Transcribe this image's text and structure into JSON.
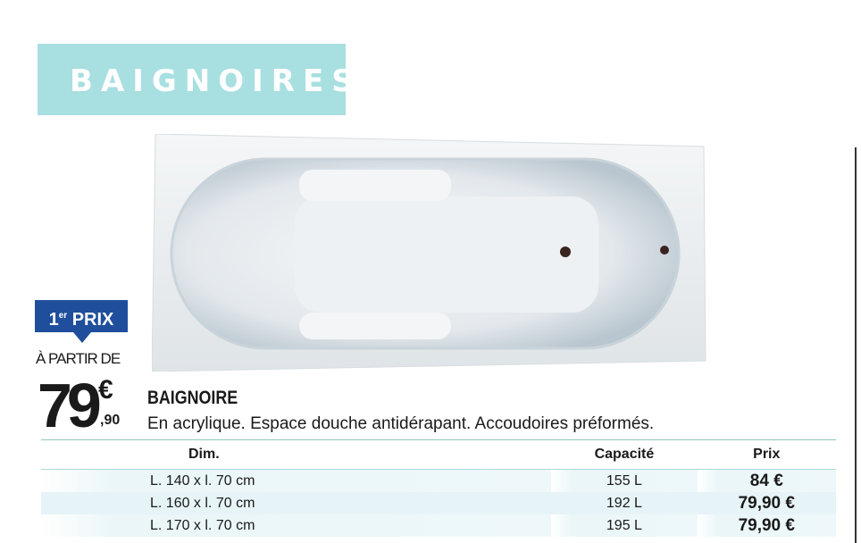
{
  "banner": {
    "title": "BAIGNOIRES",
    "color": "#a8dfe1"
  },
  "badge": {
    "number": "1",
    "superscript": "er",
    "label": "PRIX",
    "color": "#1f4e9c"
  },
  "price": {
    "prefix": "À PARTIR DE",
    "units": "79",
    "currency": "€",
    "cents": ",90"
  },
  "product": {
    "name": "BAIGNOIRE",
    "description": "En acrylique. Espace douche antidérapant. Accoudoires préformés."
  },
  "table": {
    "headers": [
      "Dim.",
      "Capacité",
      "Prix"
    ],
    "rows": [
      {
        "dim": "L. 140 x l. 70 cm",
        "cap": "155 L",
        "prix": "84 €"
      },
      {
        "dim": "L. 160 x l. 70 cm",
        "cap": "192 L",
        "prix": "79,90 €"
      },
      {
        "dim": "L. 170 x l. 70 cm",
        "cap": "195 L",
        "prix": "79,90 €"
      }
    ]
  }
}
